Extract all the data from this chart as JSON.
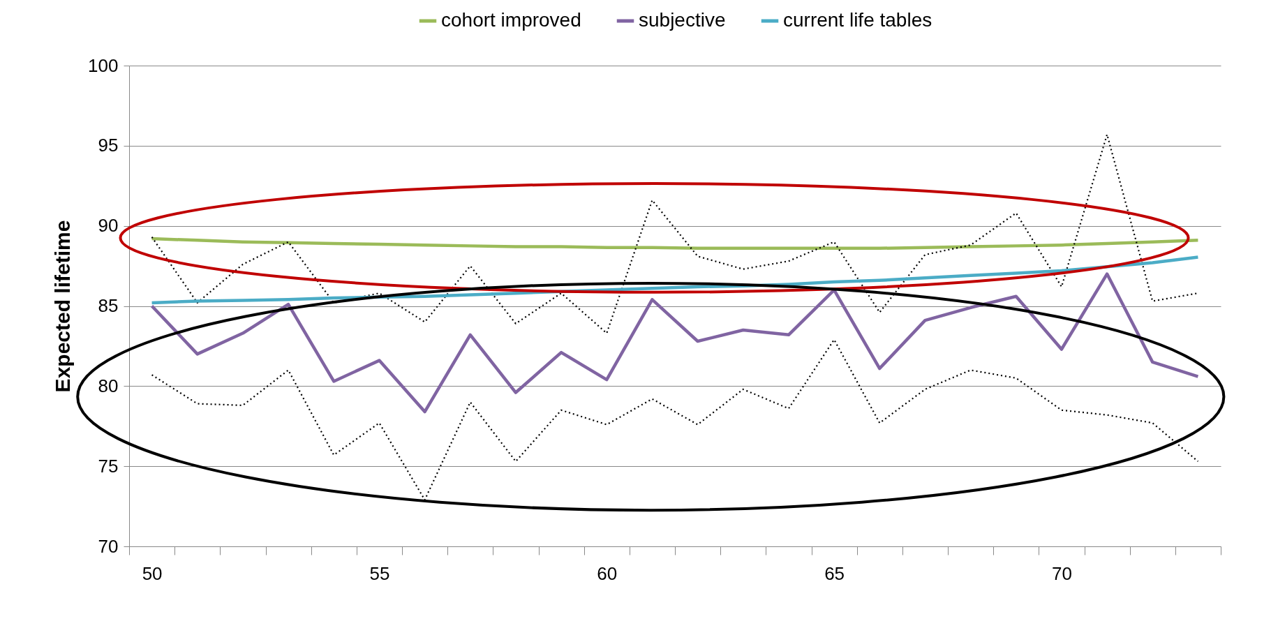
{
  "chart_data": {
    "type": "line",
    "ylabel": "Expected lifetime",
    "categories": [
      "50",
      null,
      null,
      null,
      null,
      "55",
      null,
      null,
      null,
      null,
      "60",
      null,
      null,
      null,
      null,
      "65",
      null,
      null,
      null,
      null,
      "70",
      null,
      null,
      null
    ],
    "series": [
      {
        "name": "cohort improved",
        "color": "#9bbb59",
        "values": [
          89.2,
          89.1,
          89.0,
          88.95,
          88.9,
          88.85,
          88.8,
          88.75,
          88.7,
          88.7,
          88.65,
          88.65,
          88.6,
          88.6,
          88.6,
          88.6,
          88.6,
          88.65,
          88.7,
          88.75,
          88.8,
          88.9,
          89.0,
          89.1
        ]
      },
      {
        "name": "subjective",
        "color": "#8064a2",
        "values": [
          85.0,
          82.0,
          83.3,
          85.1,
          80.3,
          81.6,
          78.4,
          83.2,
          79.6,
          82.1,
          80.4,
          85.4,
          82.8,
          83.5,
          83.2,
          86.0,
          81.1,
          84.1,
          84.9,
          85.6,
          82.3,
          87.0,
          81.5,
          80.6
        ]
      },
      {
        "name": "current life tables",
        "color": "#4bacc6",
        "values": [
          85.2,
          85.3,
          85.35,
          85.4,
          85.5,
          85.55,
          85.6,
          85.7,
          85.8,
          85.9,
          86.0,
          86.1,
          86.2,
          86.25,
          86.35,
          86.5,
          86.6,
          86.75,
          86.9,
          87.05,
          87.2,
          87.45,
          87.7,
          88.05
        ]
      },
      {
        "color": "#000000",
        "line_style": "dotted",
        "values": [
          89.3,
          85.2,
          87.6,
          89.0,
          85.2,
          85.8,
          84.0,
          87.5,
          83.9,
          85.8,
          83.3,
          91.6,
          88.1,
          87.3,
          87.8,
          89.0,
          84.6,
          88.2,
          88.8,
          90.8,
          86.2,
          95.7,
          85.3,
          85.8
        ]
      },
      {
        "color": "#000000",
        "line_style": "dotted",
        "values": [
          80.7,
          78.9,
          78.8,
          81.0,
          75.7,
          77.7,
          72.9,
          79.0,
          75.3,
          78.5,
          77.6,
          79.2,
          77.6,
          79.8,
          78.6,
          82.9,
          77.7,
          79.8,
          81.0,
          80.5,
          78.5,
          78.2,
          77.7,
          75.3
        ]
      }
    ],
    "ylim": [
      70,
      100
    ],
    "yticks": [
      70,
      75,
      80,
      85,
      90,
      95,
      100
    ],
    "grid": "y",
    "legend": "top",
    "marker": "none",
    "line_style": "solid"
  }
}
